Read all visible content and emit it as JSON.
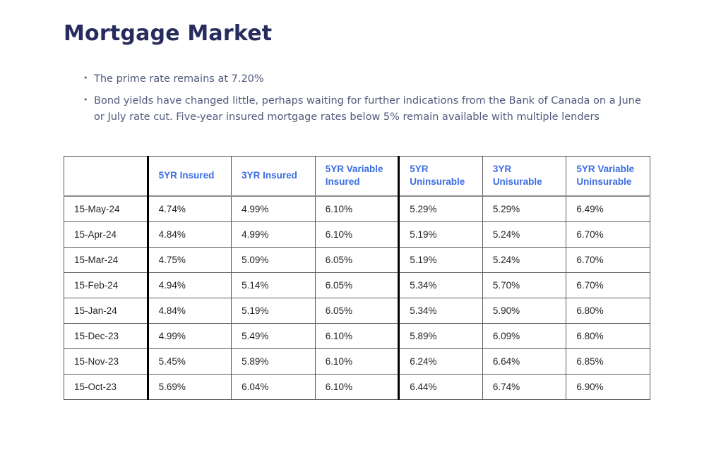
{
  "page": {
    "title": "Mortgage Market"
  },
  "bullets": [
    "The prime rate remains at 7.20%",
    "Bond yields have changed little, perhaps waiting for further indications from the Bank of Canada on a June or July rate cut. Five-year insured mortgage rates below 5% remain available with multiple lenders"
  ],
  "table": {
    "columns": [
      "",
      "5YR Insured",
      "3YR Insured",
      "5YR Variable Insured",
      "5YR Uninsurable",
      "3YR Unisurable",
      "5YR Variable Uninsurable"
    ],
    "thick_border_before_columns": [
      1,
      4
    ],
    "rows": [
      {
        "date": "15-May-24",
        "values": [
          "4.74%",
          "4.99%",
          "6.10%",
          "5.29%",
          "5.29%",
          "6.49%"
        ]
      },
      {
        "date": "15-Apr-24",
        "values": [
          "4.84%",
          "4.99%",
          "6.10%",
          "5.19%",
          "5.24%",
          "6.70%"
        ]
      },
      {
        "date": "15-Mar-24",
        "values": [
          "4.75%",
          "5.09%",
          "6.05%",
          "5.19%",
          "5.24%",
          "6.70%"
        ]
      },
      {
        "date": "15-Feb-24",
        "values": [
          "4.94%",
          "5.14%",
          "6.05%",
          "5.34%",
          "5.70%",
          "6.70%"
        ]
      },
      {
        "date": "15-Jan-24",
        "values": [
          "4.84%",
          "5.19%",
          "6.05%",
          "5.34%",
          "5.90%",
          "6.80%"
        ]
      },
      {
        "date": "15-Dec-23",
        "values": [
          "4.99%",
          "5.49%",
          "6.10%",
          "5.89%",
          "6.09%",
          "6.80%"
        ]
      },
      {
        "date": "15-Nov-23",
        "values": [
          "5.45%",
          "5.89%",
          "6.10%",
          "6.24%",
          "6.64%",
          "6.85%"
        ]
      },
      {
        "date": "15-Oct-23",
        "values": [
          "5.69%",
          "6.04%",
          "6.10%",
          "6.44%",
          "6.74%",
          "6.90%"
        ]
      }
    ]
  },
  "colors": {
    "heading": "#272c5e",
    "body_text": "#515a7c",
    "table_header_blue": "#3b6de3",
    "cell_text": "#222428",
    "thick_border": "#000000"
  }
}
